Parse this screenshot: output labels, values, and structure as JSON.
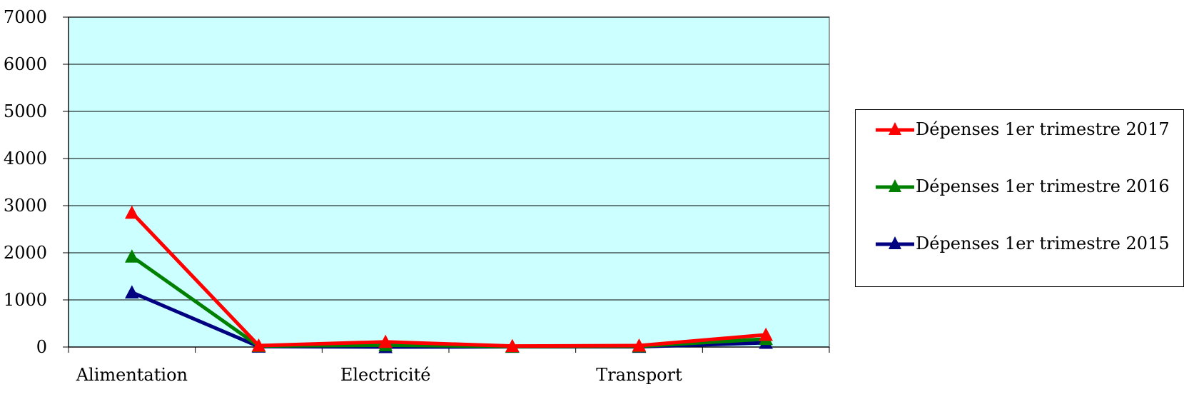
{
  "chart_data": {
    "type": "line",
    "categories": [
      "Alimentation",
      "",
      "Electricité",
      "",
      "Transport",
      ""
    ],
    "x_tick_labels": [
      "Alimentation",
      "Electricité",
      "Transport"
    ],
    "y_ticks": [
      0,
      1000,
      2000,
      3000,
      4000,
      5000,
      6000,
      7000
    ],
    "ylim": [
      0,
      7000
    ],
    "grid": true,
    "plot_background": "#ccffff",
    "legend_position": "right",
    "series": [
      {
        "name": "Dépenses 1er trimestre 2017",
        "color": "#ff0000",
        "marker": "triangle",
        "values": [
          2850,
          30,
          110,
          20,
          30,
          260
        ]
      },
      {
        "name": "Dépenses 1er trimestre 2016",
        "color": "#008000",
        "marker": "triangle",
        "values": [
          1920,
          20,
          40,
          10,
          15,
          170
        ]
      },
      {
        "name": "Dépenses 1er trimestre 2015",
        "color": "#000080",
        "marker": "triangle",
        "values": [
          1160,
          10,
          0,
          5,
          5,
          90
        ]
      }
    ]
  }
}
